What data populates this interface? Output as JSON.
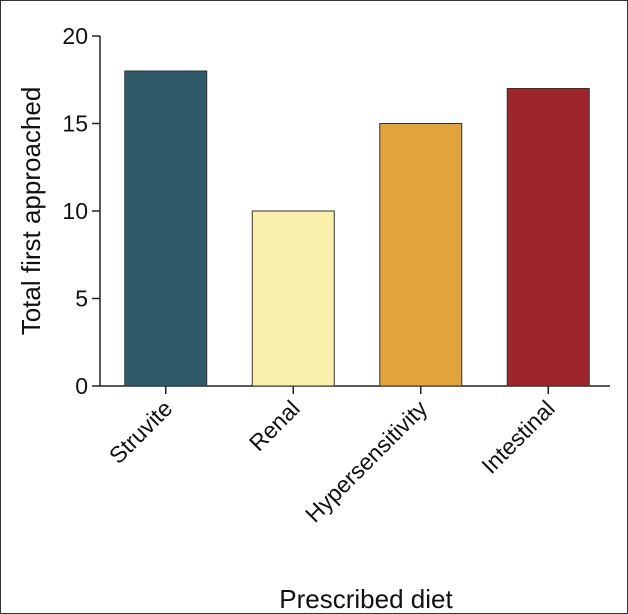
{
  "chart_data": {
    "type": "bar",
    "categories": [
      "Struvite",
      "Renal",
      "Hypersensitivity",
      "Intestinal"
    ],
    "values": [
      18,
      10,
      15,
      17
    ],
    "colors": [
      "#2f5b68",
      "#fbf0ab",
      "#e2a33c",
      "#9e252a"
    ],
    "title": "",
    "xlabel": "Prescribed diet",
    "ylabel": "Total first approached",
    "ylim": [
      0,
      20
    ],
    "yticks": [
      0,
      5,
      10,
      15,
      20
    ],
    "grid": false,
    "legend": "none"
  }
}
